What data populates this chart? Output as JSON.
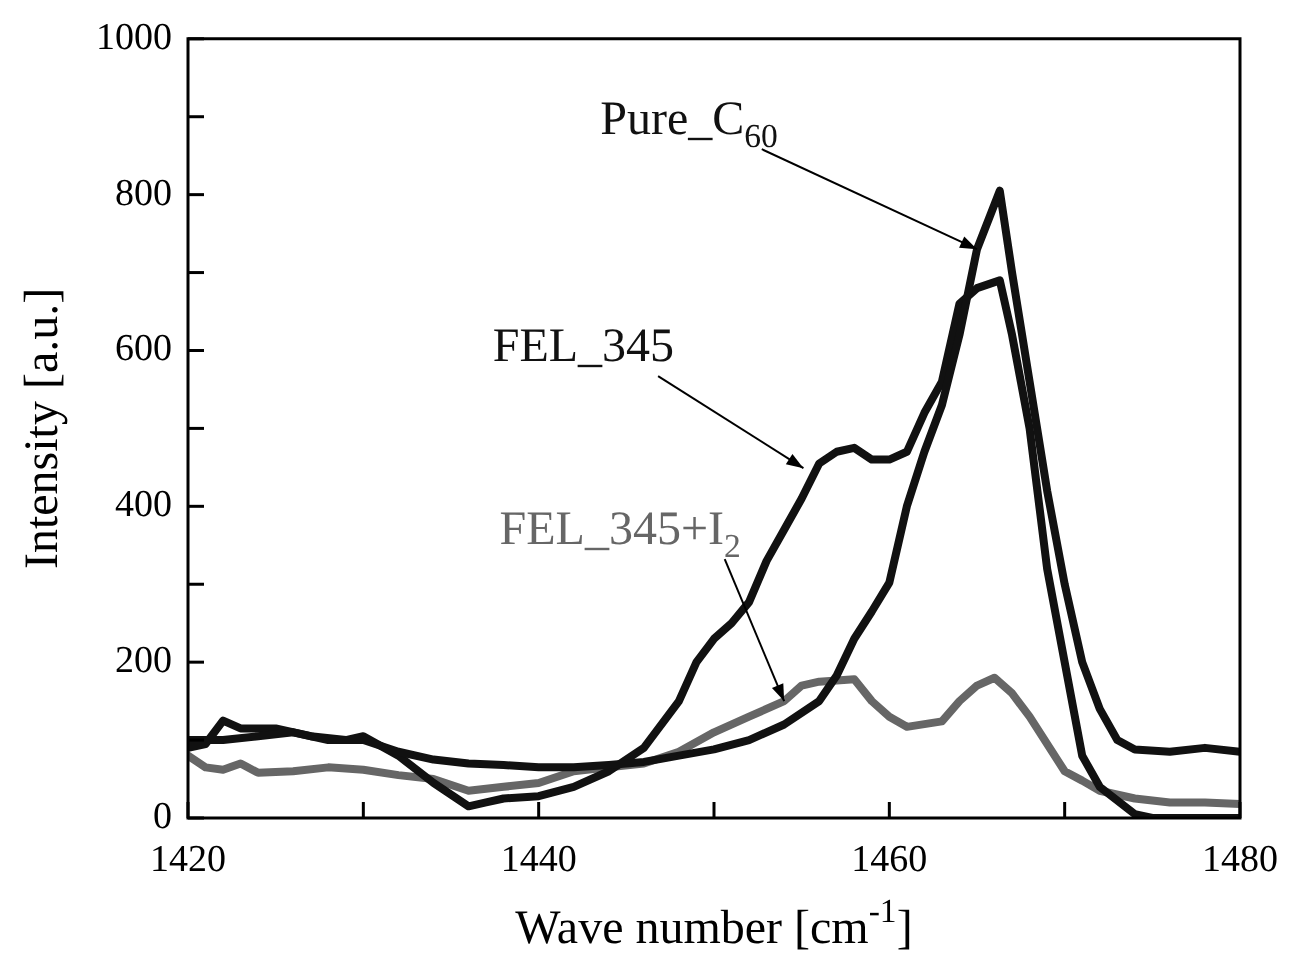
{
  "chart_data": {
    "type": "line",
    "xlabel": "Wave number [cm$^{-1}$]",
    "ylabel": "Intensity [a.u.]",
    "xlim": [
      1420,
      1480
    ],
    "ylim": [
      0,
      1000
    ],
    "xticks": [
      1420,
      {
        "value": 1430,
        "label": null
      },
      1440,
      {
        "value": 1450,
        "label": null
      },
      1460,
      {
        "value": 1470,
        "label": null
      },
      1480
    ],
    "yticks": [
      0,
      {
        "value": 100,
        "label": null
      },
      200,
      {
        "value": 300,
        "label": null
      },
      400,
      {
        "value": 500,
        "label": null
      },
      600,
      {
        "value": 700,
        "label": null
      },
      800,
      {
        "value": 900,
        "label": null
      },
      1000
    ],
    "grid": false,
    "legend": false,
    "marker": "none",
    "line_style": "solid",
    "series": [
      {
        "color": "#111111",
        "x": [
          1420,
          1422,
          1424,
          1426,
          1428,
          1430,
          1432,
          1434,
          1436,
          1438,
          1440,
          1442,
          1444,
          1446,
          1448,
          1450,
          1452,
          1454,
          1456,
          1457,
          1458,
          1459,
          1460,
          1461,
          1462,
          1463,
          1464,
          1465,
          1466.3,
          1467,
          1468,
          1469,
          1470,
          1471,
          1472,
          1473,
          1474,
          1476,
          1478,
          1480
        ],
        "values": [
          100,
          100,
          105,
          110,
          100,
          100,
          85,
          75,
          70,
          68,
          65,
          65,
          68,
          72,
          80,
          88,
          100,
          120,
          150,
          183,
          230,
          265,
          302,
          400,
          470,
          530,
          620,
          730,
          805,
          700,
          560,
          420,
          300,
          200,
          140,
          100,
          88,
          85,
          90,
          85
        ]
      },
      {
        "color": "#111111",
        "x": [
          1420,
          1421,
          1422,
          1423,
          1425,
          1427,
          1429,
          1430,
          1432,
          1434,
          1436,
          1437,
          1438,
          1440,
          1442,
          1444,
          1446,
          1448,
          1449,
          1450,
          1451,
          1452,
          1453,
          1454,
          1455,
          1456,
          1457,
          1458,
          1459,
          1460,
          1461,
          1462,
          1463,
          1464,
          1465,
          1466.3,
          1467,
          1468,
          1469,
          1470,
          1471,
          1472,
          1474,
          1475,
          1480
        ],
        "values": [
          90,
          95,
          125,
          115,
          115,
          105,
          100,
          105,
          80,
          45,
          15,
          20,
          25,
          28,
          40,
          60,
          90,
          150,
          200,
          230,
          250,
          277,
          330,
          370,
          410,
          455,
          470,
          475,
          460,
          460,
          470,
          520,
          560,
          660,
          680,
          690,
          620,
          500,
          320,
          200,
          80,
          40,
          5,
          0,
          0
        ]
      },
      {
        "color": "#666666",
        "x": [
          1420,
          1421,
          1422,
          1423,
          1424,
          1426,
          1428,
          1430,
          1432,
          1434,
          1436,
          1438,
          1440,
          1442,
          1444,
          1446,
          1448,
          1450,
          1452,
          1454,
          1455,
          1456,
          1458,
          1459,
          1460,
          1461,
          1463,
          1464,
          1465,
          1466,
          1467,
          1468,
          1470,
          1471,
          1472,
          1474,
          1476,
          1478,
          1480
        ],
        "values": [
          80,
          65,
          62,
          70,
          58,
          60,
          65,
          62,
          55,
          50,
          35,
          40,
          45,
          60,
          65,
          70,
          85,
          110,
          130,
          150,
          170,
          175,
          178,
          150,
          130,
          117,
          124,
          150,
          170,
          180,
          160,
          130,
          60,
          48,
          35,
          25,
          20,
          20,
          18
        ]
      }
    ],
    "annotations": [
      {
        "text": "Pure_C$_{60}$",
        "x": 1465,
        "y": 730
      },
      {
        "text": "FEL_345",
        "x": 1455.1,
        "y": 449
      },
      {
        "text": "FEL_345+I$_{2}$",
        "x": 1454,
        "y": 150
      }
    ]
  }
}
